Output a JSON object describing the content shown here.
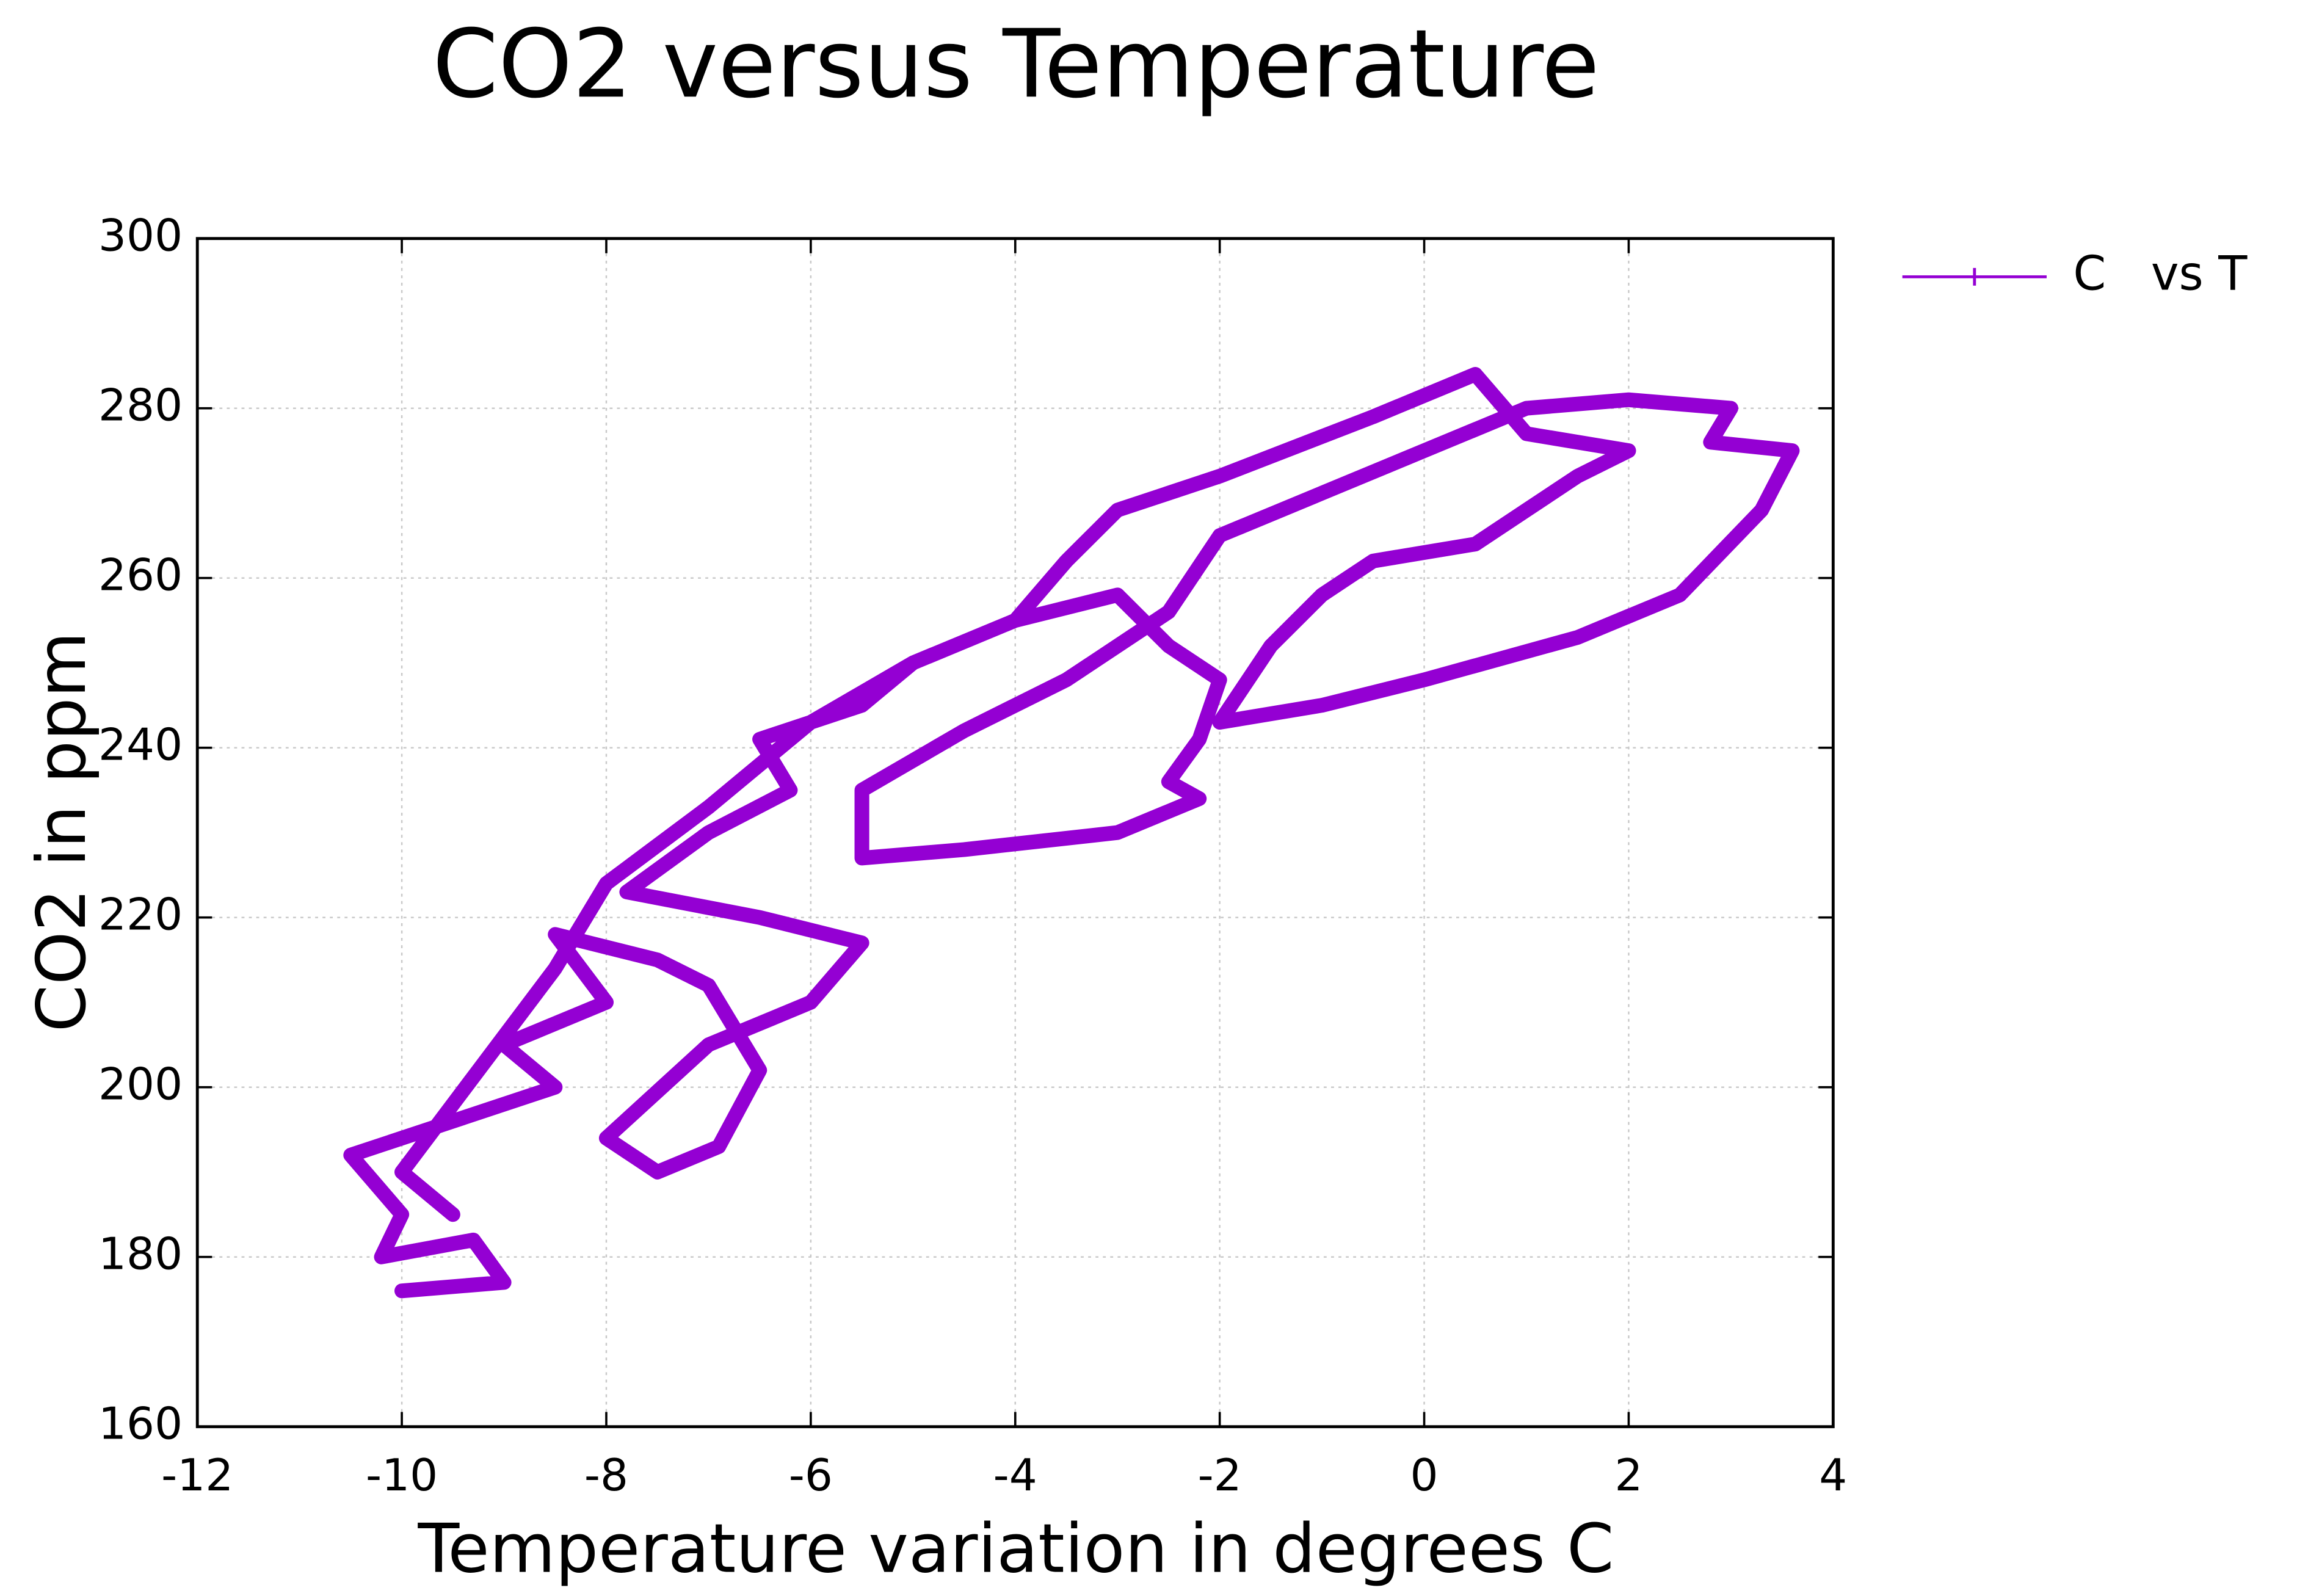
{
  "chart_data": {
    "type": "line",
    "title": "CO2 versus Temperature",
    "x_label": "Temperature variation in degrees C",
    "y_label": "CO2 in ppm",
    "legend_position": "outside-top-right",
    "grid": true,
    "xlim": [
      -12,
      4
    ],
    "ylim": [
      160,
      300
    ],
    "xticks": [
      -12,
      -10,
      -8,
      -6,
      -4,
      -2,
      0,
      2,
      4
    ],
    "yticks": [
      160,
      180,
      200,
      220,
      240,
      260,
      280,
      300
    ],
    "series": [
      {
        "name": "C   vs T",
        "color": "#9400d3",
        "x": [
          -10,
          -9,
          -9.3,
          -10.2,
          -10,
          -10.5,
          -9.5,
          -8.5,
          -9,
          -8,
          -8.5,
          -7.5,
          -7,
          -6.5,
          -6.9,
          -7.5,
          -8,
          -7,
          -6,
          -5.5,
          -6.5,
          -7.8,
          -7,
          -6.2,
          -6.5,
          -5.5,
          -5,
          -4,
          -3,
          -2.5,
          -2,
          -2.2,
          -2.5,
          -2.2,
          -3,
          -4.5,
          -5.5,
          -5.5,
          -4.5,
          -3.5,
          -2.5,
          -2,
          -1,
          0,
          1,
          2,
          3,
          2.8,
          3.6,
          3.3,
          2.5,
          1.5,
          0,
          -1,
          -2,
          -1.5,
          -1,
          -0.5,
          0.5,
          1,
          1.5,
          2,
          1,
          0.5,
          -0.5,
          -2,
          -3,
          -3.5,
          -4,
          -5,
          -6,
          -7,
          -8,
          -8.5,
          -9,
          -9.5,
          -10,
          -9.5
        ],
        "values": [
          176,
          177,
          182,
          180,
          185,
          192,
          196,
          200,
          205,
          210,
          218,
          215,
          212,
          202,
          193,
          190,
          194,
          205,
          210,
          217,
          220,
          223,
          230,
          235,
          241,
          245,
          250,
          255,
          258,
          252,
          248,
          241,
          236,
          234,
          230,
          228,
          227,
          235,
          242,
          248,
          256,
          265,
          270,
          275,
          280,
          281,
          280,
          276,
          275,
          268,
          258,
          253,
          248,
          245,
          243,
          252,
          258,
          262,
          264,
          268,
          272,
          275,
          277,
          284,
          279,
          272,
          268,
          262,
          255,
          250,
          243,
          233,
          224,
          214,
          206,
          198,
          190,
          185
        ]
      }
    ]
  }
}
